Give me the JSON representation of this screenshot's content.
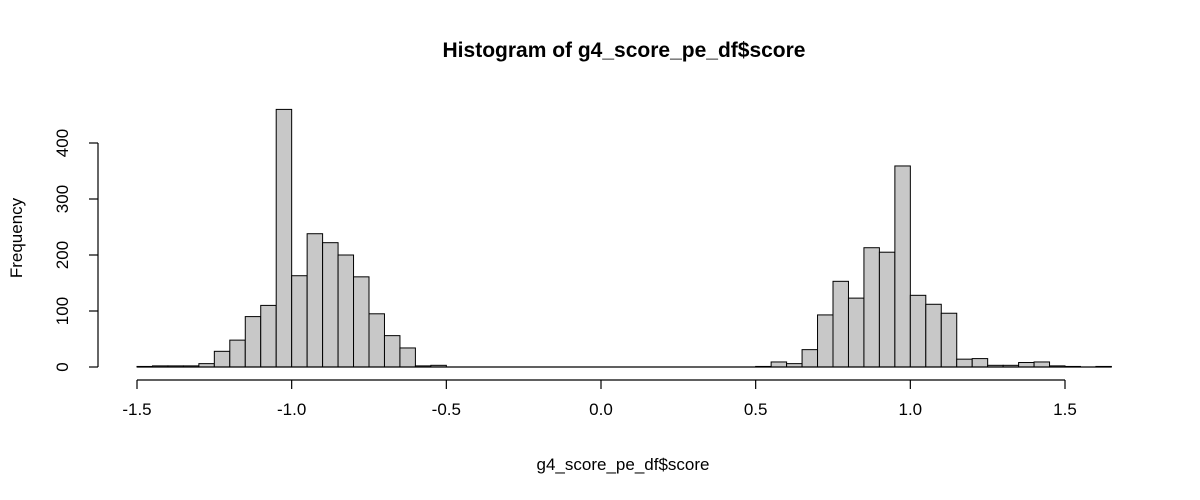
{
  "chart_data": {
    "type": "bar",
    "title": "Histogram of g4_score_pe_df$score",
    "xlabel": "g4_score_pe_df$score",
    "ylabel": "Frequency",
    "xlim": [
      -1.5,
      1.65
    ],
    "ylim": [
      0,
      460
    ],
    "bin_width": 0.05,
    "x_ticks": [
      "-1.5",
      "-1.0",
      "-0.5",
      "0.0",
      "0.5",
      "1.0",
      "1.5"
    ],
    "y_ticks": [
      "0",
      "100",
      "200",
      "300",
      "400"
    ],
    "bins": [
      {
        "x0": -1.5,
        "count": 1
      },
      {
        "x0": -1.45,
        "count": 2
      },
      {
        "x0": -1.4,
        "count": 2
      },
      {
        "x0": -1.35,
        "count": 2
      },
      {
        "x0": -1.3,
        "count": 6
      },
      {
        "x0": -1.25,
        "count": 28
      },
      {
        "x0": -1.2,
        "count": 48
      },
      {
        "x0": -1.15,
        "count": 90
      },
      {
        "x0": -1.1,
        "count": 110
      },
      {
        "x0": -1.05,
        "count": 460
      },
      {
        "x0": -1.0,
        "count": 163
      },
      {
        "x0": -0.95,
        "count": 238
      },
      {
        "x0": -0.9,
        "count": 222
      },
      {
        "x0": -0.85,
        "count": 200
      },
      {
        "x0": -0.8,
        "count": 161
      },
      {
        "x0": -0.75,
        "count": 95
      },
      {
        "x0": -0.7,
        "count": 56
      },
      {
        "x0": -0.65,
        "count": 34
      },
      {
        "x0": -0.6,
        "count": 2
      },
      {
        "x0": -0.55,
        "count": 3
      },
      {
        "x0": -0.5,
        "count": 0
      },
      {
        "x0": -0.45,
        "count": 0
      },
      {
        "x0": -0.4,
        "count": 0
      },
      {
        "x0": -0.35,
        "count": 0
      },
      {
        "x0": -0.3,
        "count": 0
      },
      {
        "x0": -0.25,
        "count": 0
      },
      {
        "x0": -0.2,
        "count": 0
      },
      {
        "x0": -0.15,
        "count": 0
      },
      {
        "x0": -0.1,
        "count": 0
      },
      {
        "x0": -0.05,
        "count": 0
      },
      {
        "x0": 0.0,
        "count": 0
      },
      {
        "x0": 0.05,
        "count": 0
      },
      {
        "x0": 0.1,
        "count": 0
      },
      {
        "x0": 0.15,
        "count": 0
      },
      {
        "x0": 0.2,
        "count": 0
      },
      {
        "x0": 0.25,
        "count": 0
      },
      {
        "x0": 0.3,
        "count": 0
      },
      {
        "x0": 0.35,
        "count": 0
      },
      {
        "x0": 0.4,
        "count": 0
      },
      {
        "x0": 0.45,
        "count": 0
      },
      {
        "x0": 0.5,
        "count": 1
      },
      {
        "x0": 0.55,
        "count": 9
      },
      {
        "x0": 0.6,
        "count": 6
      },
      {
        "x0": 0.65,
        "count": 31
      },
      {
        "x0": 0.7,
        "count": 93
      },
      {
        "x0": 0.75,
        "count": 153
      },
      {
        "x0": 0.8,
        "count": 123
      },
      {
        "x0": 0.85,
        "count": 213
      },
      {
        "x0": 0.9,
        "count": 205
      },
      {
        "x0": 0.95,
        "count": 359
      },
      {
        "x0": 1.0,
        "count": 128
      },
      {
        "x0": 1.05,
        "count": 112
      },
      {
        "x0": 1.1,
        "count": 96
      },
      {
        "x0": 1.15,
        "count": 14
      },
      {
        "x0": 1.2,
        "count": 15
      },
      {
        "x0": 1.25,
        "count": 3
      },
      {
        "x0": 1.3,
        "count": 3
      },
      {
        "x0": 1.35,
        "count": 8
      },
      {
        "x0": 1.4,
        "count": 9
      },
      {
        "x0": 1.45,
        "count": 2
      },
      {
        "x0": 1.5,
        "count": 1
      },
      {
        "x0": 1.55,
        "count": 0
      },
      {
        "x0": 1.6,
        "count": 1
      }
    ],
    "colors": {
      "bar_fill": "#c8c8c8",
      "bar_stroke": "#000000"
    }
  }
}
